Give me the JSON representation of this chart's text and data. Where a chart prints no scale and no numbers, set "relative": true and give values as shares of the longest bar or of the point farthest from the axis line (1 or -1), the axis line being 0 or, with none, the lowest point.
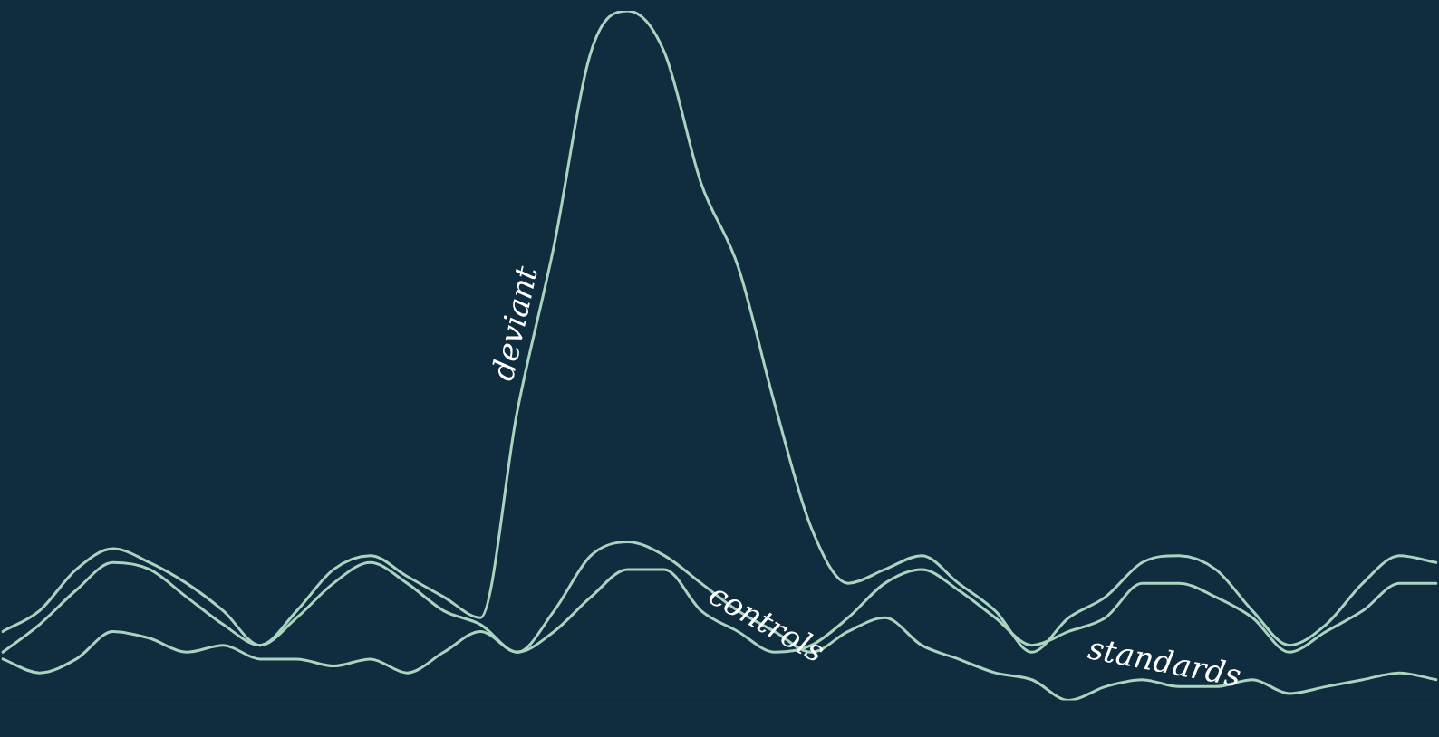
{
  "chart_data": {
    "type": "line",
    "relative": true,
    "grid": false,
    "legend": false,
    "marker": "none",
    "line_style": "solid",
    "categories": [
      null,
      null,
      null,
      null,
      null,
      null,
      null,
      null,
      null,
      null,
      null,
      null,
      null,
      null,
      null,
      null,
      null,
      null,
      null,
      null,
      null,
      null,
      null,
      null,
      null,
      null,
      null,
      null,
      null,
      null,
      null,
      null,
      null,
      null,
      null,
      null,
      null,
      null,
      null,
      null
    ],
    "series": [
      {
        "name": "deviant",
        "color": "#a9d4c0",
        "values": [
          0.1,
          0.13,
          0.19,
          0.22,
          0.2,
          0.17,
          0.13,
          0.08,
          0.13,
          0.19,
          0.21,
          0.18,
          0.15,
          0.12,
          0.42,
          0.66,
          0.94,
          1,
          0.94,
          0.75,
          0.63,
          0.43,
          0.25,
          0.17,
          0.19,
          0.21,
          0.17,
          0.13,
          0.07,
          0.12,
          0.15,
          0.2,
          0.21,
          0.19,
          0.13,
          0.08,
          0.11,
          0.17,
          0.21,
          0.2
        ]
      },
      {
        "name": "controls",
        "color": "#a9d4c0",
        "values": [
          0.07,
          0.11,
          0.16,
          0.2,
          0.19,
          0.15,
          0.11,
          0.08,
          0.12,
          0.17,
          0.2,
          0.17,
          0.13,
          0.11,
          0.07,
          0.1,
          0.15,
          0.19,
          0.19,
          0.13,
          0.1,
          0.07,
          0.08,
          0.12,
          0.17,
          0.19,
          0.16,
          0.12,
          0.08,
          0.1,
          0.12,
          0.17,
          0.17,
          0.15,
          0.12,
          0.07,
          0.1,
          0.13,
          0.17,
          0.17
        ]
      },
      {
        "name": "standards",
        "color": "#a9d4c0",
        "values": [
          0.06,
          0.04,
          0.06,
          0.1,
          0.09,
          0.07,
          0.08,
          0.06,
          0.06,
          0.05,
          0.06,
          0.04,
          0.07,
          0.1,
          0.07,
          0.13,
          0.21,
          0.23,
          0.21,
          0.17,
          0.13,
          0.1,
          0.07,
          0.1,
          0.12,
          0.08,
          0.06,
          0.04,
          0.03,
          0,
          0.02,
          0.03,
          0.02,
          0.02,
          0.03,
          0.01,
          0.02,
          0.03,
          0.04,
          0.03
        ]
      }
    ]
  }
}
